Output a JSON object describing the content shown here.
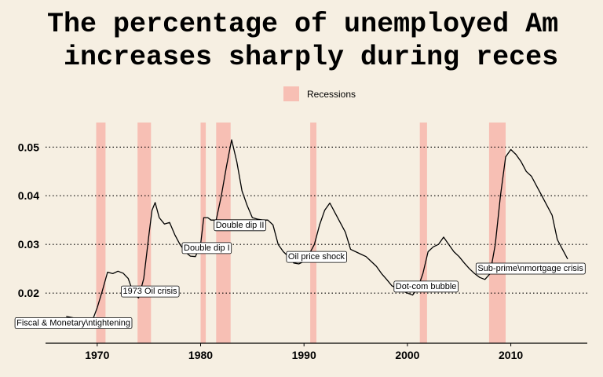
{
  "chart_data": {
    "type": "line",
    "title_lines": [
      "The percentage of unemployed Am",
      "increases sharply during reces"
    ],
    "xlabel": "",
    "ylabel": "",
    "xlim": [
      1965.0,
      2017.4
    ],
    "ylim": [
      0.0097,
      0.0565
    ],
    "xticks": [
      1970,
      1980,
      1990,
      2000,
      2010
    ],
    "yticks": [
      0.02,
      0.03,
      0.04,
      0.05
    ],
    "ytick_labels": [
      "0.02",
      "0.03",
      "0.04",
      "0.05"
    ],
    "grid": "horizontal dotted",
    "legend": {
      "position": "top-center",
      "entries": [
        "Recessions"
      ]
    },
    "colors": {
      "background": "#f6efe2",
      "recession": "#f7bfb4",
      "line": "#000000"
    },
    "recessions": [
      [
        1969.9,
        1970.8
      ],
      [
        1973.9,
        1975.2
      ],
      [
        1980.0,
        1980.5
      ],
      [
        1981.5,
        1982.9
      ],
      [
        1990.6,
        1991.2
      ],
      [
        2001.2,
        2001.9
      ],
      [
        2007.9,
        2009.5
      ]
    ],
    "series": [
      {
        "points": [
          [
            1967.0,
            0.0152
          ],
          [
            1967.5,
            0.015
          ],
          [
            1968.0,
            0.0148
          ],
          [
            1968.5,
            0.0143
          ],
          [
            1969.0,
            0.0139
          ],
          [
            1969.5,
            0.0142
          ],
          [
            1970.0,
            0.017
          ],
          [
            1970.5,
            0.0205
          ],
          [
            1971.0,
            0.0243
          ],
          [
            1971.5,
            0.024
          ],
          [
            1972.0,
            0.0245
          ],
          [
            1972.5,
            0.0241
          ],
          [
            1973.0,
            0.023
          ],
          [
            1973.5,
            0.02
          ],
          [
            1974.0,
            0.019
          ],
          [
            1974.5,
            0.023
          ],
          [
            1975.0,
            0.032
          ],
          [
            1975.3,
            0.037
          ],
          [
            1975.6,
            0.0386
          ],
          [
            1976.0,
            0.0355
          ],
          [
            1976.5,
            0.0342
          ],
          [
            1977.0,
            0.0345
          ],
          [
            1977.5,
            0.032
          ],
          [
            1978.0,
            0.03
          ],
          [
            1978.5,
            0.0285
          ],
          [
            1979.0,
            0.0276
          ],
          [
            1979.5,
            0.0275
          ],
          [
            1980.0,
            0.03
          ],
          [
            1980.3,
            0.0355
          ],
          [
            1980.7,
            0.0355
          ],
          [
            1981.0,
            0.035
          ],
          [
            1981.5,
            0.035
          ],
          [
            1982.0,
            0.04
          ],
          [
            1982.5,
            0.046
          ],
          [
            1983.0,
            0.0515
          ],
          [
            1983.5,
            0.047
          ],
          [
            1984.0,
            0.041
          ],
          [
            1984.5,
            0.038
          ],
          [
            1985.0,
            0.0355
          ],
          [
            1985.5,
            0.0352
          ],
          [
            1986.0,
            0.035
          ],
          [
            1986.5,
            0.035
          ],
          [
            1987.0,
            0.034
          ],
          [
            1987.5,
            0.03
          ],
          [
            1988.0,
            0.0285
          ],
          [
            1988.5,
            0.0275
          ],
          [
            1989.0,
            0.0262
          ],
          [
            1989.5,
            0.026
          ],
          [
            1990.0,
            0.0265
          ],
          [
            1990.5,
            0.028
          ],
          [
            1991.0,
            0.03
          ],
          [
            1991.5,
            0.034
          ],
          [
            1992.0,
            0.037
          ],
          [
            1992.5,
            0.0385
          ],
          [
            1993.0,
            0.0365
          ],
          [
            1993.5,
            0.0345
          ],
          [
            1994.0,
            0.0325
          ],
          [
            1994.5,
            0.029
          ],
          [
            1995.0,
            0.0285
          ],
          [
            1995.5,
            0.028
          ],
          [
            1996.0,
            0.0275
          ],
          [
            1996.5,
            0.0265
          ],
          [
            1997.0,
            0.0255
          ],
          [
            1997.5,
            0.024
          ],
          [
            1998.0,
            0.0228
          ],
          [
            1998.5,
            0.0215
          ],
          [
            1999.0,
            0.021
          ],
          [
            1999.5,
            0.0205
          ],
          [
            2000.0,
            0.02
          ],
          [
            2000.5,
            0.0196
          ],
          [
            2001.0,
            0.021
          ],
          [
            2001.5,
            0.024
          ],
          [
            2002.0,
            0.0285
          ],
          [
            2002.5,
            0.0295
          ],
          [
            2003.0,
            0.03
          ],
          [
            2003.5,
            0.0315
          ],
          [
            2004.0,
            0.03
          ],
          [
            2004.5,
            0.0285
          ],
          [
            2005.0,
            0.0275
          ],
          [
            2005.5,
            0.0262
          ],
          [
            2006.0,
            0.025
          ],
          [
            2006.5,
            0.024
          ],
          [
            2007.0,
            0.0232
          ],
          [
            2007.5,
            0.0228
          ],
          [
            2008.0,
            0.024
          ],
          [
            2008.5,
            0.03
          ],
          [
            2009.0,
            0.04
          ],
          [
            2009.5,
            0.048
          ],
          [
            2010.0,
            0.0495
          ],
          [
            2010.5,
            0.0485
          ],
          [
            2011.0,
            0.047
          ],
          [
            2011.5,
            0.045
          ],
          [
            2012.0,
            0.044
          ],
          [
            2012.5,
            0.042
          ],
          [
            2013.0,
            0.04
          ],
          [
            2013.5,
            0.038
          ],
          [
            2014.0,
            0.036
          ],
          [
            2014.5,
            0.031
          ],
          [
            2015.0,
            0.029
          ],
          [
            2015.5,
            0.027
          ]
        ]
      }
    ],
    "annotations": [
      {
        "text": "Fiscal & Monetary\\ntightening",
        "x": 1967.7,
        "y": 0.014
      },
      {
        "text": "1973 Oil crisis",
        "x": 1975.1,
        "y": 0.0205
      },
      {
        "text": "Double dip I",
        "x": 1980.6,
        "y": 0.0294
      },
      {
        "text": "Double dip II",
        "x": 1983.8,
        "y": 0.0341
      },
      {
        "text": "Oil price shock",
        "x": 1991.2,
        "y": 0.0276
      },
      {
        "text": "Dot-com bubble",
        "x": 2001.8,
        "y": 0.0215
      },
      {
        "text": "Sub-prime\\nmortgage crisis",
        "x": 2011.9,
        "y": 0.0252
      }
    ]
  }
}
